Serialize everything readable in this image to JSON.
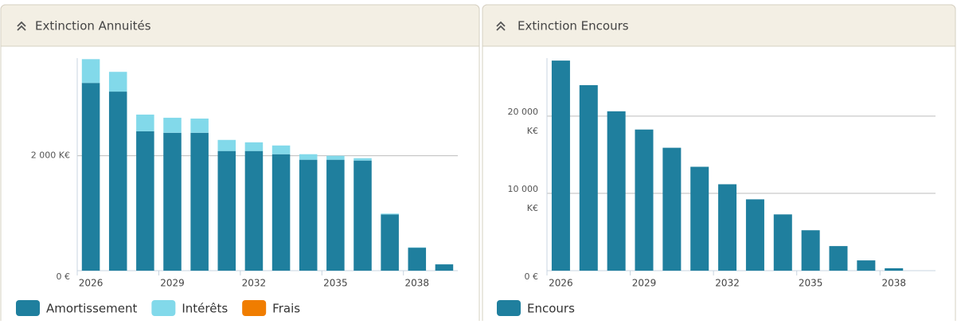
{
  "chart_data": [
    {
      "type": "stacked-bar",
      "title": "Extinction Annuités",
      "categories": [
        2026,
        null,
        null,
        2029,
        null,
        null,
        2032,
        null,
        null,
        2035,
        null,
        null,
        2038,
        null
      ],
      "series": [
        {
          "name": "Amortissement",
          "color": "#1f7f9e",
          "values": [
            3268,
            3117,
            2427,
            2400,
            2400,
            2083,
            2083,
            2027,
            1931,
            1931,
            1917,
            979,
            400,
            110
          ]
        },
        {
          "name": "Intérêts",
          "color": "#82d9ea",
          "values": [
            414,
            344,
            290,
            262,
            248,
            193,
            151,
            152,
            96,
            69,
            41,
            14,
            5,
            2
          ]
        },
        {
          "name": "Frais",
          "color": "#f07d00",
          "values": [
            0,
            0,
            0,
            0,
            0,
            0,
            0,
            0,
            0,
            0,
            0,
            0,
            0,
            0
          ]
        }
      ],
      "ylim": [
        0,
        3700
      ],
      "yticks": [
        {
          "value": 0,
          "label": "0 €"
        },
        {
          "value": 2000,
          "label": "2 000 K€"
        }
      ],
      "grid": true
    },
    {
      "type": "stacked-bar",
      "title": "Extinction Encours",
      "categories": [
        2026,
        null,
        null,
        2029,
        null,
        null,
        2032,
        null,
        null,
        2035,
        null,
        null,
        2038,
        null
      ],
      "series": [
        {
          "name": "Encours",
          "color": "#1f7f9e",
          "values": [
            27180,
            24000,
            20620,
            18260,
            15900,
            13440,
            11180,
            9230,
            7280,
            5230,
            3180,
            1330,
            310,
            0
          ]
        }
      ],
      "ylim": [
        0,
        27500
      ],
      "yticks": [
        {
          "value": 0,
          "label": "0 €"
        },
        {
          "value": 10000,
          "label": "10 000 K€"
        },
        {
          "value": 20000,
          "label": "20 000 K€"
        }
      ],
      "grid": true
    }
  ]
}
